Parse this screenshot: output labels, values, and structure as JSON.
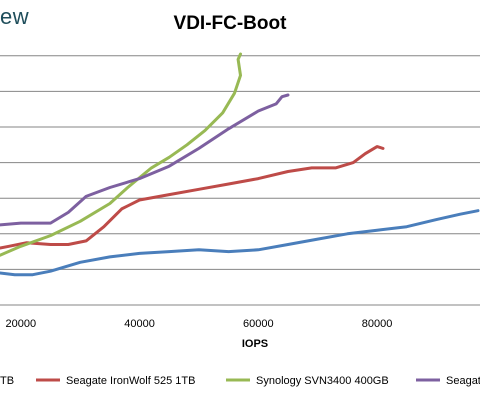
{
  "header": {
    "logo_text": "ew"
  },
  "chart_data": {
    "type": "line",
    "title": "VDI-FC-Boot",
    "xlabel": "IOPS",
    "ylabel": "",
    "xlim": [
      16500,
      97000
    ],
    "ylim": [
      0,
      7.5
    ],
    "x_ticks": [
      20000,
      40000,
      60000,
      80000
    ],
    "x_tick_labels": [
      "20000",
      "40000",
      "60000",
      "80000"
    ],
    "y_gridlines": [
      1,
      2,
      3,
      4,
      5,
      6,
      7
    ],
    "grid": true,
    "legend_position": "bottom",
    "series": [
      {
        "name": "TB",
        "color": "#4a7ebb",
        "points": [
          [
            16500,
            0.9
          ],
          [
            19000,
            0.85
          ],
          [
            22000,
            0.85
          ],
          [
            25000,
            0.95
          ],
          [
            30000,
            1.2
          ],
          [
            35000,
            1.35
          ],
          [
            40000,
            1.45
          ],
          [
            45000,
            1.5
          ],
          [
            50000,
            1.55
          ],
          [
            55000,
            1.5
          ],
          [
            60000,
            1.55
          ],
          [
            65000,
            1.7
          ],
          [
            70000,
            1.85
          ],
          [
            75000,
            2.0
          ],
          [
            80000,
            2.1
          ],
          [
            85000,
            2.2
          ],
          [
            90000,
            2.4
          ],
          [
            94000,
            2.55
          ],
          [
            97000,
            2.65
          ]
        ]
      },
      {
        "name": "Seagate IronWolf 525 1TB",
        "color": "#be4b48",
        "points": [
          [
            16500,
            1.6
          ],
          [
            18000,
            1.65
          ],
          [
            21000,
            1.75
          ],
          [
            25000,
            1.7
          ],
          [
            28000,
            1.7
          ],
          [
            31000,
            1.8
          ],
          [
            34000,
            2.2
          ],
          [
            37000,
            2.7
          ],
          [
            40000,
            2.95
          ],
          [
            45000,
            3.1
          ],
          [
            50000,
            3.25
          ],
          [
            55000,
            3.4
          ],
          [
            60000,
            3.55
          ],
          [
            65000,
            3.75
          ],
          [
            69000,
            3.85
          ],
          [
            73000,
            3.85
          ],
          [
            76000,
            4.0
          ],
          [
            78000,
            4.25
          ],
          [
            80000,
            4.45
          ],
          [
            81000,
            4.4
          ]
        ]
      },
      {
        "name": "Synology SVN3400 400GB",
        "color": "#98b954",
        "points": [
          [
            16500,
            1.4
          ],
          [
            20000,
            1.65
          ],
          [
            25000,
            1.95
          ],
          [
            30000,
            2.35
          ],
          [
            35000,
            2.85
          ],
          [
            38000,
            3.3
          ],
          [
            42000,
            3.85
          ],
          [
            45000,
            4.15
          ],
          [
            48000,
            4.5
          ],
          [
            51000,
            4.9
          ],
          [
            54000,
            5.4
          ],
          [
            56000,
            5.95
          ],
          [
            57000,
            6.45
          ],
          [
            56600,
            6.9
          ],
          [
            57000,
            7.05
          ]
        ]
      },
      {
        "name": "Seagat",
        "color": "#7d60a0",
        "points": [
          [
            16500,
            2.25
          ],
          [
            20000,
            2.3
          ],
          [
            25000,
            2.3
          ],
          [
            28000,
            2.6
          ],
          [
            31000,
            3.05
          ],
          [
            35000,
            3.3
          ],
          [
            40000,
            3.55
          ],
          [
            45000,
            3.9
          ],
          [
            50000,
            4.4
          ],
          [
            55000,
            4.95
          ],
          [
            60000,
            5.45
          ],
          [
            63000,
            5.65
          ],
          [
            64000,
            5.85
          ],
          [
            65000,
            5.9
          ]
        ]
      }
    ]
  }
}
